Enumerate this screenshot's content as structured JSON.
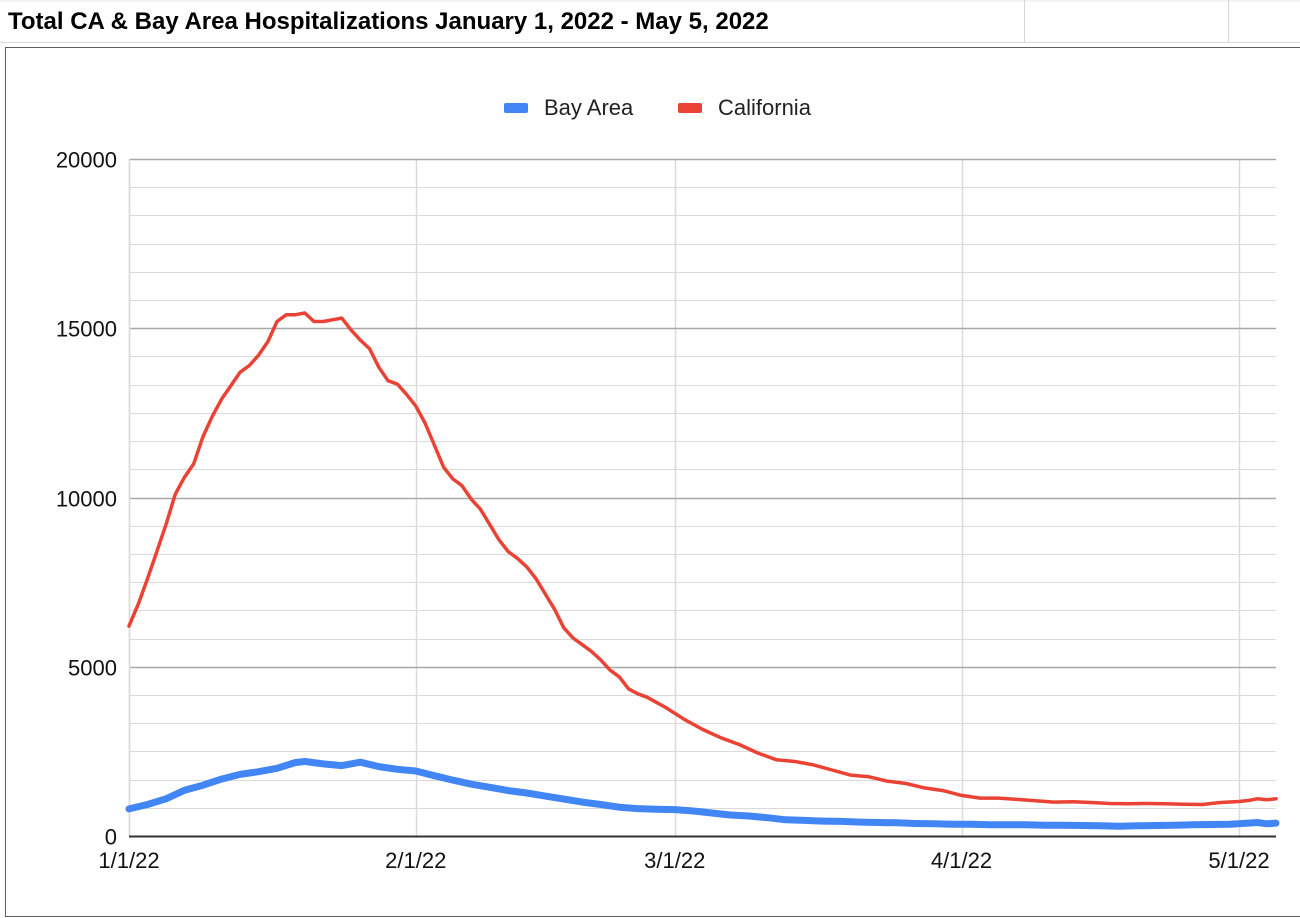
{
  "title": "Total CA & Bay Area Hospitalizations January 1, 2022 - May 5, 2022",
  "colors": {
    "bay_area": "#4285f4",
    "california": "#ea4335",
    "major_grid": "#a8a8a8",
    "minor_grid": "#dadada",
    "axis": "#333333"
  },
  "chart_data": {
    "type": "line",
    "title": "Total CA & Bay Area Hospitalizations January 1, 2022 - May 5, 2022",
    "xlabel": "",
    "ylabel": "",
    "x_range": [
      "2022-01-01",
      "2022-05-05"
    ],
    "ylim": [
      0,
      20000
    ],
    "yticks": [
      0,
      5000,
      10000,
      15000,
      20000
    ],
    "xticks": [
      {
        "date": "2022-01-01",
        "label": "1/1/22"
      },
      {
        "date": "2022-02-01",
        "label": "2/1/22"
      },
      {
        "date": "2022-03-01",
        "label": "3/1/22"
      },
      {
        "date": "2022-04-01",
        "label": "4/1/22"
      },
      {
        "date": "2022-05-01",
        "label": "5/1/22"
      }
    ],
    "grid": true,
    "legend_position": "top",
    "series": [
      {
        "name": "Bay Area",
        "color": "#4285f4",
        "points": [
          [
            "2022-01-01",
            800
          ],
          [
            "2022-01-03",
            930
          ],
          [
            "2022-01-05",
            1100
          ],
          [
            "2022-01-07",
            1350
          ],
          [
            "2022-01-09",
            1500
          ],
          [
            "2022-01-11",
            1680
          ],
          [
            "2022-01-13",
            1820
          ],
          [
            "2022-01-15",
            1900
          ],
          [
            "2022-01-17",
            2000
          ],
          [
            "2022-01-19",
            2170
          ],
          [
            "2022-01-20",
            2200
          ],
          [
            "2022-01-22",
            2130
          ],
          [
            "2022-01-24",
            2080
          ],
          [
            "2022-01-26",
            2180
          ],
          [
            "2022-01-28",
            2050
          ],
          [
            "2022-01-30",
            1970
          ],
          [
            "2022-02-01",
            1920
          ],
          [
            "2022-02-03",
            1780
          ],
          [
            "2022-02-05",
            1650
          ],
          [
            "2022-02-07",
            1530
          ],
          [
            "2022-02-09",
            1440
          ],
          [
            "2022-02-11",
            1340
          ],
          [
            "2022-02-13",
            1270
          ],
          [
            "2022-02-15",
            1180
          ],
          [
            "2022-02-17",
            1090
          ],
          [
            "2022-02-19",
            1000
          ],
          [
            "2022-02-21",
            930
          ],
          [
            "2022-02-23",
            850
          ],
          [
            "2022-02-25",
            810
          ],
          [
            "2022-02-27",
            790
          ],
          [
            "2022-03-01",
            780
          ],
          [
            "2022-03-03",
            740
          ],
          [
            "2022-03-05",
            680
          ],
          [
            "2022-03-07",
            620
          ],
          [
            "2022-03-09",
            590
          ],
          [
            "2022-03-11",
            540
          ],
          [
            "2022-03-13",
            480
          ],
          [
            "2022-03-15",
            460
          ],
          [
            "2022-03-17",
            440
          ],
          [
            "2022-03-19",
            430
          ],
          [
            "2022-03-21",
            410
          ],
          [
            "2022-03-23",
            400
          ],
          [
            "2022-03-25",
            390
          ],
          [
            "2022-03-27",
            370
          ],
          [
            "2022-03-29",
            360
          ],
          [
            "2022-03-31",
            350
          ],
          [
            "2022-04-02",
            345
          ],
          [
            "2022-04-04",
            335
          ],
          [
            "2022-04-06",
            330
          ],
          [
            "2022-04-08",
            330
          ],
          [
            "2022-04-10",
            320
          ],
          [
            "2022-04-12",
            320
          ],
          [
            "2022-04-14",
            310
          ],
          [
            "2022-04-16",
            300
          ],
          [
            "2022-04-18",
            290
          ],
          [
            "2022-04-20",
            300
          ],
          [
            "2022-04-22",
            310
          ],
          [
            "2022-04-24",
            320
          ],
          [
            "2022-04-26",
            330
          ],
          [
            "2022-04-28",
            340
          ],
          [
            "2022-04-30",
            350
          ],
          [
            "2022-05-02",
            380
          ],
          [
            "2022-05-03",
            400
          ],
          [
            "2022-05-04",
            360
          ],
          [
            "2022-05-05",
            380
          ]
        ]
      },
      {
        "name": "California",
        "color": "#ea4335",
        "points": [
          [
            "2022-01-01",
            6200
          ],
          [
            "2022-01-02",
            6850
          ],
          [
            "2022-01-03",
            7600
          ],
          [
            "2022-01-04",
            8400
          ],
          [
            "2022-01-05",
            9200
          ],
          [
            "2022-01-06",
            10100
          ],
          [
            "2022-01-07",
            10600
          ],
          [
            "2022-01-08",
            11000
          ],
          [
            "2022-01-09",
            11800
          ],
          [
            "2022-01-10",
            12400
          ],
          [
            "2022-01-11",
            12900
          ],
          [
            "2022-01-12",
            13300
          ],
          [
            "2022-01-13",
            13700
          ],
          [
            "2022-01-14",
            13900
          ],
          [
            "2022-01-15",
            14200
          ],
          [
            "2022-01-16",
            14600
          ],
          [
            "2022-01-17",
            15200
          ],
          [
            "2022-01-18",
            15400
          ],
          [
            "2022-01-19",
            15400
          ],
          [
            "2022-01-20",
            15450
          ],
          [
            "2022-01-21",
            15200
          ],
          [
            "2022-01-22",
            15200
          ],
          [
            "2022-01-23",
            15250
          ],
          [
            "2022-01-24",
            15300
          ],
          [
            "2022-01-25",
            14950
          ],
          [
            "2022-01-26",
            14650
          ],
          [
            "2022-01-27",
            14400
          ],
          [
            "2022-01-28",
            13850
          ],
          [
            "2022-01-29",
            13450
          ],
          [
            "2022-01-30",
            13350
          ],
          [
            "2022-01-31",
            13050
          ],
          [
            "2022-02-01",
            12700
          ],
          [
            "2022-02-02",
            12200
          ],
          [
            "2022-02-03",
            11550
          ],
          [
            "2022-02-04",
            10900
          ],
          [
            "2022-02-05",
            10550
          ],
          [
            "2022-02-06",
            10350
          ],
          [
            "2022-02-07",
            9950
          ],
          [
            "2022-02-08",
            9650
          ],
          [
            "2022-02-09",
            9200
          ],
          [
            "2022-02-10",
            8750
          ],
          [
            "2022-02-11",
            8400
          ],
          [
            "2022-02-12",
            8200
          ],
          [
            "2022-02-13",
            7950
          ],
          [
            "2022-02-14",
            7600
          ],
          [
            "2022-02-15",
            7150
          ],
          [
            "2022-02-16",
            6700
          ],
          [
            "2022-02-17",
            6150
          ],
          [
            "2022-02-18",
            5850
          ],
          [
            "2022-02-19",
            5650
          ],
          [
            "2022-02-20",
            5450
          ],
          [
            "2022-02-21",
            5200
          ],
          [
            "2022-02-22",
            4900
          ],
          [
            "2022-02-23",
            4700
          ],
          [
            "2022-02-24",
            4350
          ],
          [
            "2022-02-25",
            4200
          ],
          [
            "2022-02-26",
            4100
          ],
          [
            "2022-02-27",
            3950
          ],
          [
            "2022-02-28",
            3800
          ],
          [
            "2022-03-02",
            3450
          ],
          [
            "2022-03-04",
            3150
          ],
          [
            "2022-03-06",
            2900
          ],
          [
            "2022-03-08",
            2700
          ],
          [
            "2022-03-10",
            2450
          ],
          [
            "2022-03-12",
            2250
          ],
          [
            "2022-03-14",
            2200
          ],
          [
            "2022-03-16",
            2100
          ],
          [
            "2022-03-18",
            1950
          ],
          [
            "2022-03-20",
            1800
          ],
          [
            "2022-03-22",
            1750
          ],
          [
            "2022-03-24",
            1620
          ],
          [
            "2022-03-26",
            1550
          ],
          [
            "2022-03-28",
            1420
          ],
          [
            "2022-03-30",
            1340
          ],
          [
            "2022-04-01",
            1200
          ],
          [
            "2022-04-03",
            1120
          ],
          [
            "2022-04-05",
            1120
          ],
          [
            "2022-04-07",
            1080
          ],
          [
            "2022-04-09",
            1040
          ],
          [
            "2022-04-11",
            1000
          ],
          [
            "2022-04-13",
            1010
          ],
          [
            "2022-04-15",
            990
          ],
          [
            "2022-04-17",
            960
          ],
          [
            "2022-04-19",
            950
          ],
          [
            "2022-04-21",
            960
          ],
          [
            "2022-04-23",
            950
          ],
          [
            "2022-04-25",
            940
          ],
          [
            "2022-04-27",
            930
          ],
          [
            "2022-04-29",
            990
          ],
          [
            "2022-05-01",
            1020
          ],
          [
            "2022-05-02",
            1050
          ],
          [
            "2022-05-03",
            1100
          ],
          [
            "2022-05-04",
            1070
          ],
          [
            "2022-05-05",
            1100
          ]
        ]
      }
    ]
  }
}
